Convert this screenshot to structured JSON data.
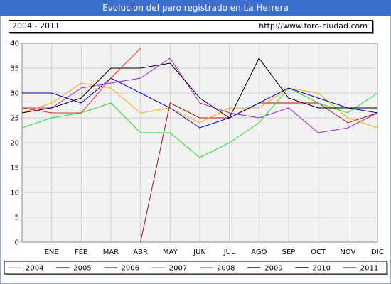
{
  "header": {
    "title": "Evolucion del paro registrado en La Herrera",
    "period": "2004 - 2011",
    "url": "http://www.foro-ciudad.com"
  },
  "chart_data": {
    "type": "line",
    "categories": [
      "",
      "ENE",
      "FEB",
      "MAR",
      "ABR",
      "MAY",
      "JUN",
      "JUL",
      "AGO",
      "SEP",
      "OCT",
      "NOV",
      "DIC"
    ],
    "ylim": [
      0,
      40
    ],
    "yticks": [
      0,
      5,
      10,
      15,
      20,
      25,
      30,
      35,
      40
    ],
    "grid": true,
    "legend_position": "bottom",
    "series": [
      {
        "name": "2004",
        "color": "#c8c8c8",
        "values": [
          null,
          null,
          null,
          null,
          null,
          null,
          null,
          null,
          null,
          null,
          null,
          null,
          null
        ]
      },
      {
        "name": "2005",
        "color": "#aa1111",
        "values": [
          null,
          null,
          null,
          null,
          0,
          28,
          25,
          25,
          28,
          28,
          28,
          24,
          26
        ]
      },
      {
        "name": "2006",
        "color": "#a020e0",
        "values": [
          27,
          27,
          31,
          32,
          33,
          37,
          28,
          26,
          25,
          27,
          22,
          23,
          26
        ]
      },
      {
        "name": "2007",
        "color": "#ffa500",
        "values": [
          26,
          28,
          32,
          31,
          26,
          27,
          24,
          27,
          27,
          31,
          30,
          25,
          23
        ]
      },
      {
        "name": "2008",
        "color": "#22dd22",
        "values": [
          23,
          25,
          26,
          28,
          22,
          22,
          17,
          20,
          24,
          31,
          28,
          26,
          30
        ]
      },
      {
        "name": "2009",
        "color": "#0000cc",
        "values": [
          30,
          30,
          28,
          33,
          30,
          27,
          23,
          25,
          28,
          31,
          29,
          27,
          26
        ]
      },
      {
        "name": "2010",
        "color": "#000000",
        "values": [
          26,
          27,
          29,
          35,
          35,
          36,
          29,
          25,
          37,
          29,
          27,
          27,
          27
        ]
      },
      {
        "name": "2011",
        "color": "#ff2222",
        "values": [
          27,
          26,
          26,
          33,
          39,
          null,
          null,
          null,
          null,
          null,
          null,
          null,
          null
        ]
      }
    ]
  }
}
